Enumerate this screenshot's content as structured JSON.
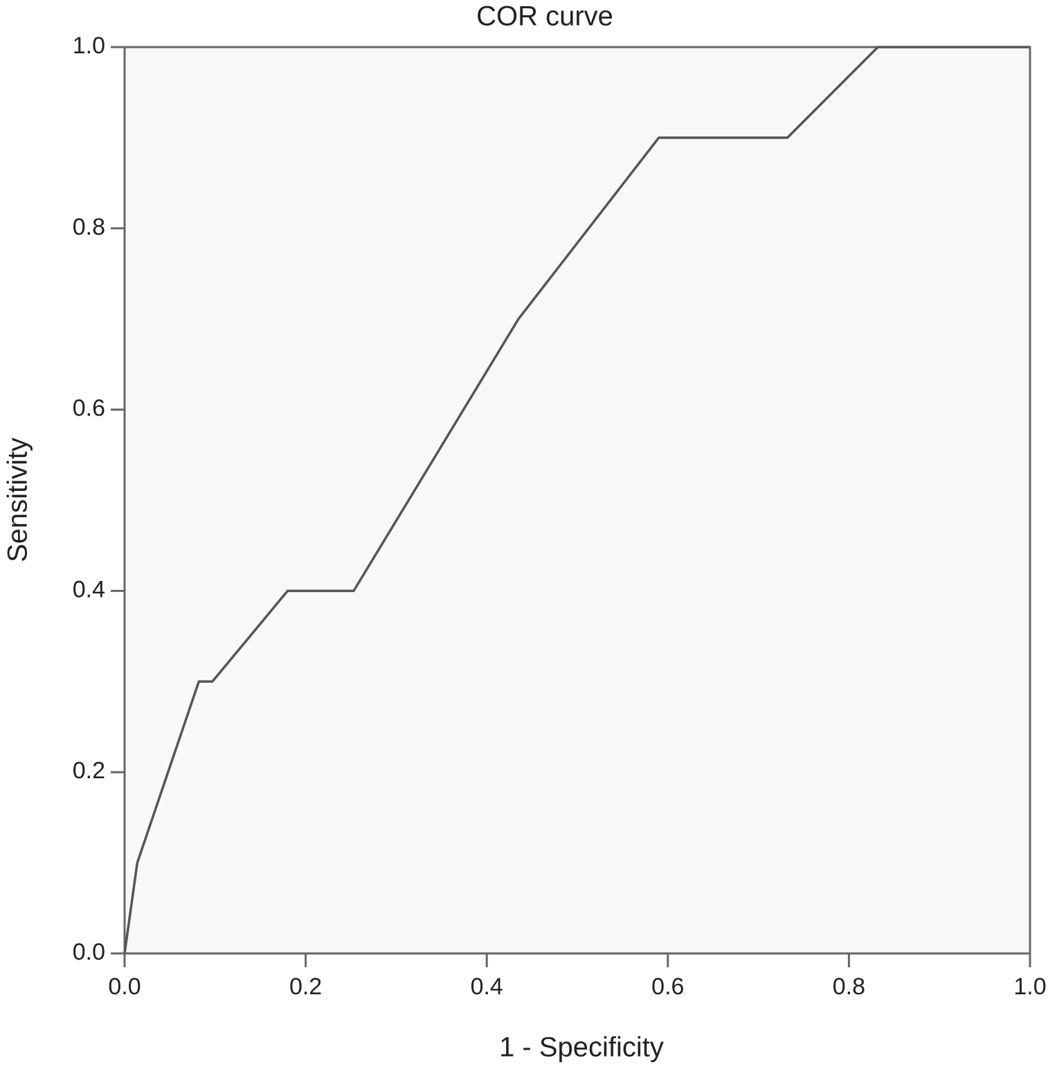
{
  "chart_data": {
    "type": "line",
    "title": "COR curve",
    "x_label": "1 - Specificity",
    "y_label": "Sensitivity",
    "x": [
      0,
      0.014,
      0.082,
      0.097,
      0.18,
      0.253,
      0.435,
      0.59,
      0.732,
      0.832,
      1
    ],
    "values": [
      0,
      0.1,
      0.3,
      0.3,
      0.4,
      0.4,
      0.7,
      0.9,
      0.9,
      1,
      1
    ],
    "color": "#555555",
    "xlim": [
      0,
      1
    ],
    "ylim": [
      0,
      1
    ],
    "xticks": [
      {
        "value": 0,
        "label": "0.0"
      },
      0.2,
      0.4,
      0.6,
      0.8,
      {
        "value": 1,
        "label": "1.0"
      }
    ],
    "yticks": [
      {
        "value": 0,
        "label": "0.0"
      },
      0.2,
      0.4,
      0.6,
      0.8,
      {
        "value": 1,
        "label": "1.0"
      }
    ]
  }
}
